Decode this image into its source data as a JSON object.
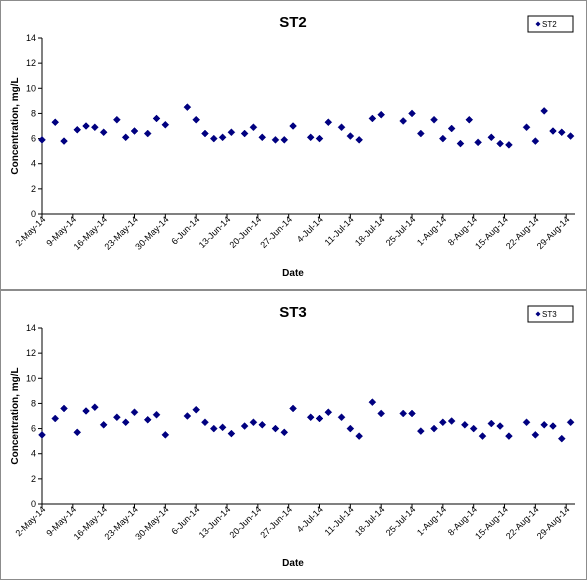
{
  "chart_data": [
    {
      "type": "scatter",
      "title": "ST2",
      "xlabel": "Date",
      "ylabel": "Concentration, mg/L",
      "ylim": [
        0,
        14
      ],
      "yticks": [
        0,
        2,
        4,
        6,
        8,
        10,
        12,
        14
      ],
      "xlim": [
        "2014-05-02",
        "2014-08-31"
      ],
      "xtick_labels": [
        "2-May-14",
        "9-May-14",
        "16-May-14",
        "23-May-14",
        "30-May-14",
        "6-Jun-14",
        "13-Jun-14",
        "20-Jun-14",
        "27-Jun-14",
        "4-Jul-14",
        "11-Jul-14",
        "18-Jul-14",
        "25-Jul-14",
        "1-Aug-14",
        "8-Aug-14",
        "15-Aug-14",
        "22-Aug-14",
        "29-Aug-14"
      ],
      "xtick_dates": [
        "2014-05-02",
        "2014-05-09",
        "2014-05-16",
        "2014-05-23",
        "2014-05-30",
        "2014-06-06",
        "2014-06-13",
        "2014-06-20",
        "2014-06-27",
        "2014-07-04",
        "2014-07-11",
        "2014-07-18",
        "2014-07-25",
        "2014-08-01",
        "2014-08-08",
        "2014-08-15",
        "2014-08-22",
        "2014-08-29"
      ],
      "grid": false,
      "legend_position": "top-right",
      "series": [
        {
          "name": "ST2",
          "color": "#000080",
          "marker": "diamond",
          "points": [
            {
              "x": "2014-05-02",
              "y": 5.9
            },
            {
              "x": "2014-05-05",
              "y": 7.3
            },
            {
              "x": "2014-05-07",
              "y": 5.8
            },
            {
              "x": "2014-05-10",
              "y": 6.7
            },
            {
              "x": "2014-05-12",
              "y": 7.0
            },
            {
              "x": "2014-05-14",
              "y": 6.9
            },
            {
              "x": "2014-05-16",
              "y": 6.5
            },
            {
              "x": "2014-05-19",
              "y": 7.5
            },
            {
              "x": "2014-05-21",
              "y": 6.1
            },
            {
              "x": "2014-05-23",
              "y": 6.6
            },
            {
              "x": "2014-05-26",
              "y": 6.4
            },
            {
              "x": "2014-05-28",
              "y": 7.6
            },
            {
              "x": "2014-05-30",
              "y": 7.1
            },
            {
              "x": "2014-06-04",
              "y": 8.5
            },
            {
              "x": "2014-06-06",
              "y": 7.5
            },
            {
              "x": "2014-06-08",
              "y": 6.4
            },
            {
              "x": "2014-06-10",
              "y": 6.0
            },
            {
              "x": "2014-06-12",
              "y": 6.1
            },
            {
              "x": "2014-06-14",
              "y": 6.5
            },
            {
              "x": "2014-06-17",
              "y": 6.4
            },
            {
              "x": "2014-06-19",
              "y": 6.9
            },
            {
              "x": "2014-06-21",
              "y": 6.1
            },
            {
              "x": "2014-06-24",
              "y": 5.9
            },
            {
              "x": "2014-06-26",
              "y": 5.9
            },
            {
              "x": "2014-06-28",
              "y": 7.0
            },
            {
              "x": "2014-07-02",
              "y": 6.1
            },
            {
              "x": "2014-07-04",
              "y": 6.0
            },
            {
              "x": "2014-07-06",
              "y": 7.3
            },
            {
              "x": "2014-07-09",
              "y": 6.9
            },
            {
              "x": "2014-07-11",
              "y": 6.2
            },
            {
              "x": "2014-07-13",
              "y": 5.9
            },
            {
              "x": "2014-07-16",
              "y": 7.6
            },
            {
              "x": "2014-07-18",
              "y": 7.9
            },
            {
              "x": "2014-07-23",
              "y": 7.4
            },
            {
              "x": "2014-07-25",
              "y": 8.0
            },
            {
              "x": "2014-07-27",
              "y": 6.4
            },
            {
              "x": "2014-07-30",
              "y": 7.5
            },
            {
              "x": "2014-08-01",
              "y": 6.0
            },
            {
              "x": "2014-08-03",
              "y": 6.8
            },
            {
              "x": "2014-08-05",
              "y": 5.6
            },
            {
              "x": "2014-08-07",
              "y": 7.5
            },
            {
              "x": "2014-08-09",
              "y": 5.7
            },
            {
              "x": "2014-08-12",
              "y": 6.1
            },
            {
              "x": "2014-08-14",
              "y": 5.6
            },
            {
              "x": "2014-08-16",
              "y": 5.5
            },
            {
              "x": "2014-08-20",
              "y": 6.9
            },
            {
              "x": "2014-08-22",
              "y": 5.8
            },
            {
              "x": "2014-08-24",
              "y": 8.2
            },
            {
              "x": "2014-08-26",
              "y": 6.6
            },
            {
              "x": "2014-08-28",
              "y": 6.5
            },
            {
              "x": "2014-08-30",
              "y": 6.2
            }
          ]
        }
      ]
    },
    {
      "type": "scatter",
      "title": "ST3",
      "xlabel": "Date",
      "ylabel": "Concentration, mg/L",
      "ylim": [
        0,
        14
      ],
      "yticks": [
        0,
        2,
        4,
        6,
        8,
        10,
        12,
        14
      ],
      "xlim": [
        "2014-05-02",
        "2014-08-31"
      ],
      "xtick_labels": [
        "2-May-14",
        "9-May-14",
        "16-May-14",
        "23-May-14",
        "30-May-14",
        "6-Jun-14",
        "13-Jun-14",
        "20-Jun-14",
        "27-Jun-14",
        "4-Jul-14",
        "11-Jul-14",
        "18-Jul-14",
        "25-Jul-14",
        "1-Aug-14",
        "8-Aug-14",
        "15-Aug-14",
        "22-Aug-14",
        "29-Aug-14"
      ],
      "xtick_dates": [
        "2014-05-02",
        "2014-05-09",
        "2014-05-16",
        "2014-05-23",
        "2014-05-30",
        "2014-06-06",
        "2014-06-13",
        "2014-06-20",
        "2014-06-27",
        "2014-07-04",
        "2014-07-11",
        "2014-07-18",
        "2014-07-25",
        "2014-08-01",
        "2014-08-08",
        "2014-08-15",
        "2014-08-22",
        "2014-08-29"
      ],
      "grid": false,
      "legend_position": "top-right",
      "series": [
        {
          "name": "ST3",
          "color": "#000080",
          "marker": "diamond",
          "points": [
            {
              "x": "2014-05-02",
              "y": 5.5
            },
            {
              "x": "2014-05-05",
              "y": 6.8
            },
            {
              "x": "2014-05-07",
              "y": 7.6
            },
            {
              "x": "2014-05-10",
              "y": 5.7
            },
            {
              "x": "2014-05-12",
              "y": 7.4
            },
            {
              "x": "2014-05-14",
              "y": 7.7
            },
            {
              "x": "2014-05-16",
              "y": 6.3
            },
            {
              "x": "2014-05-19",
              "y": 6.9
            },
            {
              "x": "2014-05-21",
              "y": 6.5
            },
            {
              "x": "2014-05-23",
              "y": 7.3
            },
            {
              "x": "2014-05-26",
              "y": 6.7
            },
            {
              "x": "2014-05-28",
              "y": 7.1
            },
            {
              "x": "2014-05-30",
              "y": 5.5
            },
            {
              "x": "2014-06-04",
              "y": 7.0
            },
            {
              "x": "2014-06-06",
              "y": 7.5
            },
            {
              "x": "2014-06-08",
              "y": 6.5
            },
            {
              "x": "2014-06-10",
              "y": 6.0
            },
            {
              "x": "2014-06-12",
              "y": 6.1
            },
            {
              "x": "2014-06-14",
              "y": 5.6
            },
            {
              "x": "2014-06-17",
              "y": 6.2
            },
            {
              "x": "2014-06-19",
              "y": 6.5
            },
            {
              "x": "2014-06-21",
              "y": 6.3
            },
            {
              "x": "2014-06-24",
              "y": 6.0
            },
            {
              "x": "2014-06-26",
              "y": 5.7
            },
            {
              "x": "2014-06-28",
              "y": 7.6
            },
            {
              "x": "2014-07-02",
              "y": 6.9
            },
            {
              "x": "2014-07-04",
              "y": 6.8
            },
            {
              "x": "2014-07-06",
              "y": 7.3
            },
            {
              "x": "2014-07-09",
              "y": 6.9
            },
            {
              "x": "2014-07-11",
              "y": 6.0
            },
            {
              "x": "2014-07-13",
              "y": 5.4
            },
            {
              "x": "2014-07-16",
              "y": 8.1
            },
            {
              "x": "2014-07-18",
              "y": 7.2
            },
            {
              "x": "2014-07-23",
              "y": 7.2
            },
            {
              "x": "2014-07-25",
              "y": 7.2
            },
            {
              "x": "2014-07-27",
              "y": 5.8
            },
            {
              "x": "2014-07-30",
              "y": 6.0
            },
            {
              "x": "2014-08-01",
              "y": 6.5
            },
            {
              "x": "2014-08-03",
              "y": 6.6
            },
            {
              "x": "2014-08-06",
              "y": 6.3
            },
            {
              "x": "2014-08-08",
              "y": 6.0
            },
            {
              "x": "2014-08-10",
              "y": 5.4
            },
            {
              "x": "2014-08-12",
              "y": 6.4
            },
            {
              "x": "2014-08-14",
              "y": 6.2
            },
            {
              "x": "2014-08-16",
              "y": 5.4
            },
            {
              "x": "2014-08-20",
              "y": 6.5
            },
            {
              "x": "2014-08-22",
              "y": 5.5
            },
            {
              "x": "2014-08-24",
              "y": 6.3
            },
            {
              "x": "2014-08-26",
              "y": 6.2
            },
            {
              "x": "2014-08-28",
              "y": 5.2
            },
            {
              "x": "2014-08-30",
              "y": 6.5
            }
          ]
        }
      ]
    }
  ]
}
